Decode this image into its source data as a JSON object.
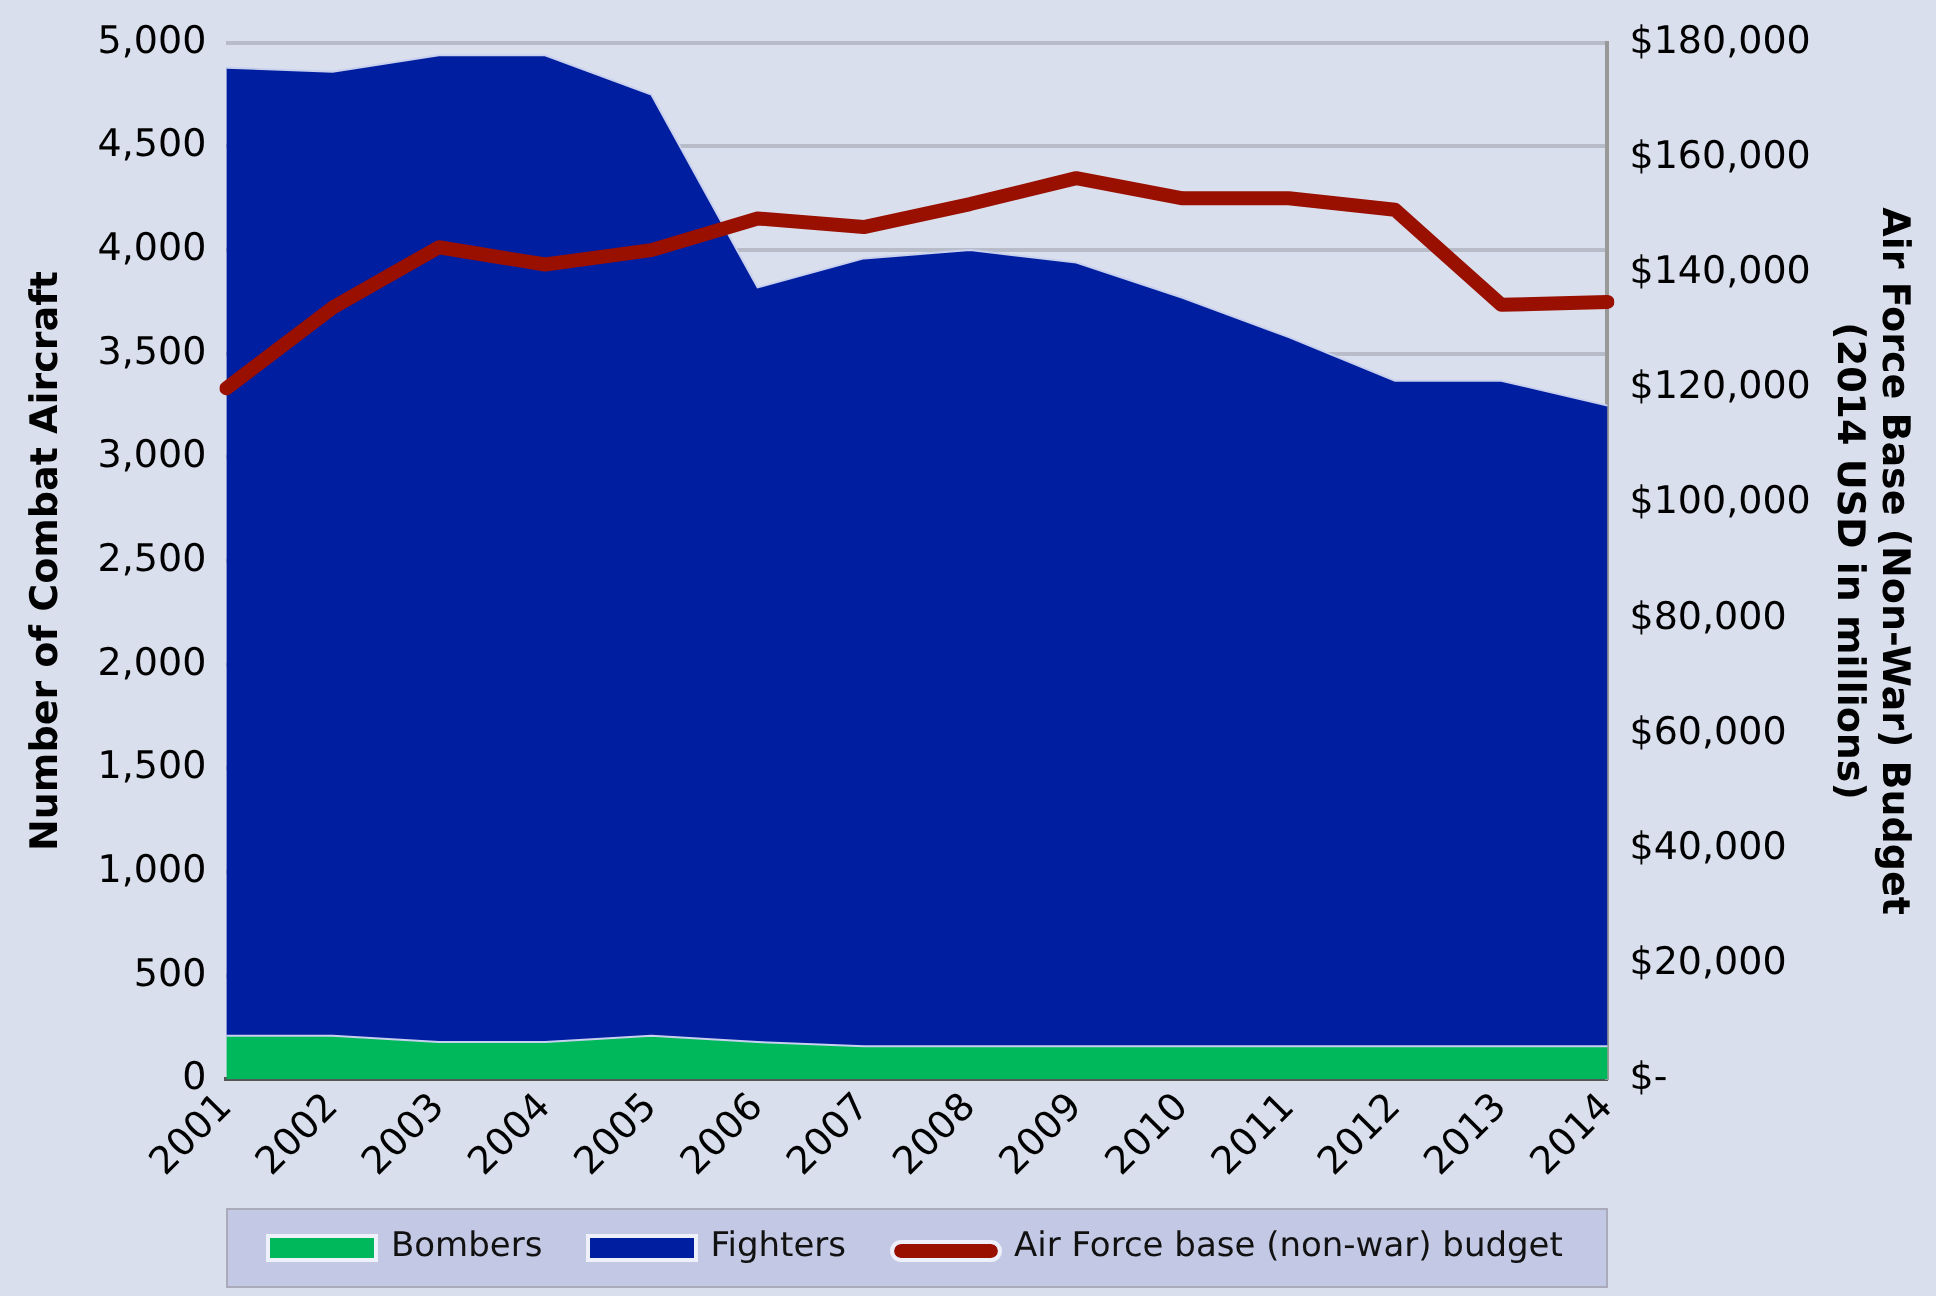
{
  "chart_data": {
    "type": "area",
    "stacked": true,
    "categories": [
      "2001",
      "2002",
      "2003",
      "2004",
      "2005",
      "2006",
      "2007",
      "2008",
      "2009",
      "2010",
      "2011",
      "2012",
      "2013",
      "2014"
    ],
    "ylabel": "Number of Combat Aircraft",
    "y2label": "Air Force Base (Non-War) Budget\n(2014 USD in millions)",
    "ylim": [
      0,
      5000
    ],
    "yticks": [
      0,
      500,
      {
        "value": 1000,
        "label": "1,000"
      },
      {
        "value": 1500,
        "label": "1,500"
      },
      {
        "value": 2000,
        "label": "2,000"
      },
      {
        "value": 2500,
        "label": "2,500"
      },
      {
        "value": 3000,
        "label": "3,000"
      },
      {
        "value": 3500,
        "label": "3,500"
      },
      {
        "value": 4000,
        "label": "4,000"
      },
      {
        "value": 4500,
        "label": "4,500"
      },
      {
        "value": 5000,
        "label": "5,000"
      }
    ],
    "y2lim": [
      0,
      180000
    ],
    "y2ticks": [
      {
        "value": 0,
        "label": "$-"
      },
      {
        "value": 20000,
        "label": "$20,000"
      },
      {
        "value": 40000,
        "label": "$40,000"
      },
      {
        "value": 60000,
        "label": "$60,000"
      },
      {
        "value": 80000,
        "label": "$80,000"
      },
      {
        "value": 100000,
        "label": "$100,000"
      },
      {
        "value": 120000,
        "label": "$120,000"
      },
      {
        "value": 140000,
        "label": "$140,000"
      },
      {
        "value": 160000,
        "label": "$160,000"
      },
      {
        "value": 180000,
        "label": "$180,000"
      }
    ],
    "grid": "y",
    "legend": "bottom",
    "series": [
      {
        "name": "Bombers",
        "color": "#00b85c",
        "values": [
          210,
          210,
          180,
          180,
          210,
          180,
          160,
          160,
          160,
          160,
          160,
          160,
          160,
          160
        ]
      },
      {
        "name": "Fighters",
        "color": "#001ea0",
        "values": [
          4670,
          4650,
          4760,
          4760,
          4540,
          3640,
          3800,
          3840,
          3780,
          3610,
          3420,
          3210,
          3210,
          3090
        ]
      },
      {
        "name": "Air Force base (non-war) budget",
        "type": "line",
        "axis": "y2",
        "color": "#990f00",
        "values": [
          120000,
          134000,
          144500,
          141500,
          144000,
          149500,
          148000,
          152000,
          156500,
          153000,
          153000,
          151000,
          134500,
          135000
        ]
      }
    ]
  }
}
